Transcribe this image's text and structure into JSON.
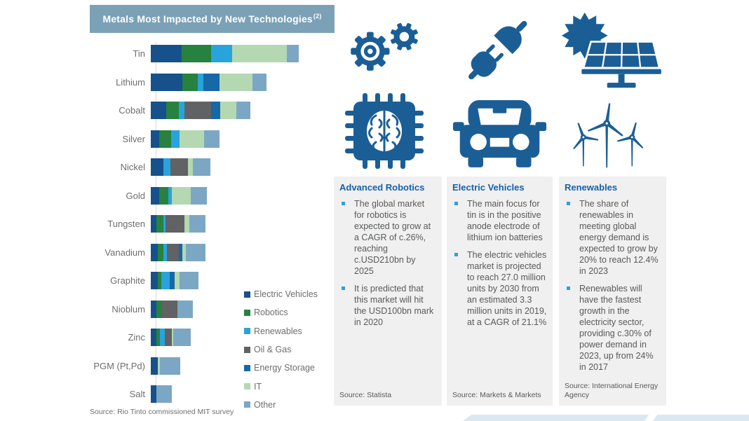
{
  "chart": {
    "title": "Metals Most Impacted by New Technologies",
    "title_note_marker": "(2)",
    "source": "Source: Rio Tinto commissioned MIT survey"
  },
  "chart_data": {
    "type": "bar",
    "orientation": "horizontal",
    "stacked": true,
    "title": "Metals Most Impacted by New Technologies (2)",
    "value_axis": "unlabeled (relative impact, widths measured in px)",
    "legend_position": "right-inside",
    "categories": [
      "Tin",
      "Lithium",
      "Cobalt",
      "Silver",
      "Nickel",
      "Gold",
      "Tungsten",
      "Vanadium",
      "Graphite",
      "Nioblum",
      "Zinc",
      "PGM (Pt,Pd)",
      "Salt"
    ],
    "series": [
      {
        "name": "Electric Vehicles",
        "color": "#16518b",
        "values": [
          44,
          45,
          22,
          12,
          18,
          12,
          8,
          10,
          10,
          8,
          8,
          10,
          8
        ]
      },
      {
        "name": "Robotics",
        "color": "#27813f",
        "values": [
          42,
          22,
          18,
          17,
          0,
          13,
          10,
          8,
          5,
          8,
          5,
          0,
          0
        ]
      },
      {
        "name": "Renewables",
        "color": "#29a3dc",
        "values": [
          30,
          8,
          8,
          12,
          10,
          5,
          3,
          5,
          12,
          0,
          7,
          0,
          0
        ]
      },
      {
        "name": "Oil & Gas",
        "color": "#606264",
        "values": [
          0,
          0,
          38,
          0,
          25,
          0,
          27,
          17,
          0,
          22,
          10,
          0,
          0
        ]
      },
      {
        "name": "Energy Storage",
        "color": "#1668a7",
        "values": [
          0,
          23,
          13,
          0,
          0,
          0,
          0,
          5,
          7,
          0,
          0,
          0,
          0
        ]
      },
      {
        "name": "IT",
        "color": "#b3d8b2",
        "values": [
          78,
          47,
          23,
          35,
          7,
          27,
          7,
          5,
          7,
          0,
          2,
          3,
          0
        ]
      },
      {
        "name": "Other",
        "color": "#7ca7c4",
        "values": [
          17,
          20,
          20,
          22,
          25,
          23,
          23,
          28,
          27,
          22,
          25,
          29,
          22
        ]
      }
    ]
  },
  "columns": [
    {
      "title": "Advanced Robotics",
      "icons": [
        "gears-icon",
        "ai-chip-brain-icon"
      ],
      "bullets": [
        "The global market for robotics is expected to grow at a CAGR of c.26%, reaching c.USD210bn by 2025",
        "It is predicted that this market will hit the USD100bn mark in 2020"
      ],
      "source": "Source: Statista"
    },
    {
      "title": "Electric Vehicles",
      "icons": [
        "electric-plug-icon",
        "car-icon"
      ],
      "bullets": [
        "The main focus for tin is in the positive anode electrode of lithium ion batteries",
        "The electric vehicles market is projected to reach 27.0 million units by 2030 from an estimated 3.3 million units in 2019, at a CAGR of 21.1%"
      ],
      "source": "Source: Markets & Markets"
    },
    {
      "title": "Renewables",
      "icons": [
        "sun-solar-panel-icon",
        "wind-turbines-icon"
      ],
      "bullets": [
        "The share of renewables in meeting global energy demand is expected to grow by 20% to reach 12.4% in 2023",
        "Renewables will have the fastest growth in the electricity sector, providing c.30% of power demand in 2023, up from 24% in 2017"
      ],
      "source": "Source: International Energy Agency"
    }
  ],
  "colors": {
    "header_bg": "#7ba1b7",
    "header_text": "#ffffff",
    "panel_bg": "#f0f0f0",
    "column_title_blue": "#1660a9",
    "body_text_gray": "#58595b",
    "label_gray": "#6d6e70",
    "bullet_blue": "#2da0da",
    "icon_navy": "#1b5e96",
    "footer_band": "#dbe8f2",
    "axis_line": "#d9d9d9"
  }
}
